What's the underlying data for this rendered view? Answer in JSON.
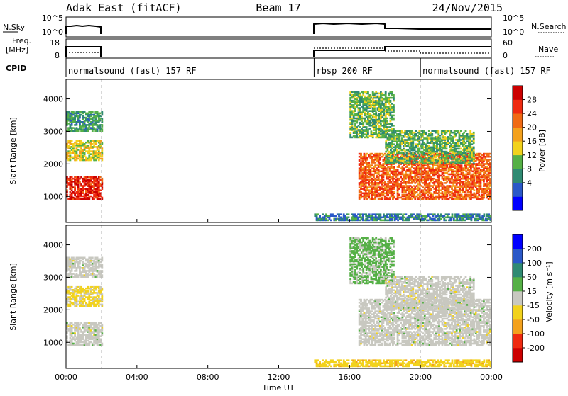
{
  "header": {
    "title": "Adak East (fitACF)",
    "beam": "Beam 17",
    "date": "24/Nov/2015"
  },
  "top_panels": {
    "nsky_label": "N.Sky",
    "nsky_ticks": [
      "10^5",
      "10^0"
    ],
    "nsearch_label": "N.Search",
    "nsearch_ticks": [
      "10^5",
      "10^0"
    ],
    "freq_label_1": "Freq.",
    "freq_label_2": "[MHz]",
    "freq_ticks": [
      "18",
      "8"
    ],
    "nave_label": "Nave",
    "nave_ticks": [
      "60",
      "0"
    ],
    "cpid_label": "CPID",
    "modes": [
      {
        "label": "normalsound (fast) 157 RF",
        "start": 0.0,
        "end": 2.0
      },
      {
        "label": "rbsp 200 RF",
        "start": 14.0,
        "end": 20.0
      },
      {
        "label": "normalsound (fast) 157 RF",
        "start": 20.0,
        "end": 24.0
      }
    ]
  },
  "xaxis": {
    "title": "Time UT",
    "ticks": [
      "00:00",
      "04:00",
      "08:00",
      "12:00",
      "16:00",
      "20:00",
      "00:00"
    ]
  },
  "power_colorbar": {
    "title": "Power [dB]",
    "levels": [
      "28",
      "24",
      "20",
      "16",
      "12",
      "8",
      "4"
    ],
    "colors": [
      "#0000ff",
      "#2a58c8",
      "#2f8a72",
      "#55b046",
      "#f2d21c",
      "#f3a11d",
      "#f06a14",
      "#ef2a10",
      "#cc0000"
    ]
  },
  "velocity_colorbar": {
    "title": "Velocity [m s⁻¹]",
    "levels": [
      "200",
      "100",
      "50",
      "15",
      "-15",
      "-50",
      "-100",
      "-200"
    ],
    "colors": [
      "#cc0000",
      "#ef2a10",
      "#f3a11d",
      "#f2d21c",
      "#c8c8c0",
      "#55b046",
      "#2f8a72",
      "#2a58c8",
      "#0000ff"
    ]
  },
  "chart_data": [
    {
      "type": "heatmap",
      "title": "Power",
      "ylabel": "Slant Range [km]",
      "xlabel": "Time UT",
      "xlim": [
        0,
        24
      ],
      "ylim": [
        200,
        4600
      ],
      "yticks": [
        1000,
        2000,
        3000,
        4000
      ],
      "colorbar": {
        "label": "Power [dB]",
        "range": [
          0,
          32
        ]
      },
      "bands": [
        {
          "t0": 0.0,
          "t1": 2.0,
          "r0": 3000,
          "r1": 3600,
          "value": 10
        },
        {
          "t0": 0.0,
          "t1": 2.0,
          "r0": 2100,
          "r1": 2700,
          "value": 16
        },
        {
          "t0": 0.0,
          "t1": 2.0,
          "r0": 900,
          "r1": 1600,
          "value": 28
        },
        {
          "t0": 14.0,
          "t1": 24.0,
          "r0": 250,
          "r1": 450,
          "value": 8
        },
        {
          "t0": 16.0,
          "t1": 18.5,
          "r0": 2800,
          "r1": 4200,
          "value": 12
        },
        {
          "t0": 16.5,
          "t1": 24.0,
          "r0": 900,
          "r1": 2300,
          "value": 24
        },
        {
          "t0": 18.0,
          "t1": 23.0,
          "r0": 2000,
          "r1": 3000,
          "value": 12
        }
      ]
    },
    {
      "type": "heatmap",
      "title": "Velocity",
      "ylabel": "Slant Range [km]",
      "xlabel": "Time UT",
      "xlim": [
        0,
        24
      ],
      "ylim": [
        200,
        4600
      ],
      "yticks": [
        1000,
        2000,
        3000,
        4000
      ],
      "colorbar": {
        "label": "Velocity [m s-1]",
        "range": [
          -250,
          250
        ]
      },
      "bands": [
        {
          "t0": 0.0,
          "t1": 2.0,
          "r0": 3000,
          "r1": 3600,
          "value": 0
        },
        {
          "t0": 0.0,
          "t1": 2.0,
          "r0": 2100,
          "r1": 2700,
          "value": -40
        },
        {
          "t0": 0.0,
          "t1": 2.0,
          "r0": 900,
          "r1": 1600,
          "value": 0
        },
        {
          "t0": 14.0,
          "t1": 24.0,
          "r0": 250,
          "r1": 450,
          "value": -60
        },
        {
          "t0": 16.0,
          "t1": 18.5,
          "r0": 2800,
          "r1": 4200,
          "value": 40
        },
        {
          "t0": 16.5,
          "t1": 24.0,
          "r0": 900,
          "r1": 2300,
          "value": 0
        },
        {
          "t0": 18.0,
          "t1": 23.0,
          "r0": 2000,
          "r1": 3000,
          "value": 0
        }
      ]
    }
  ]
}
